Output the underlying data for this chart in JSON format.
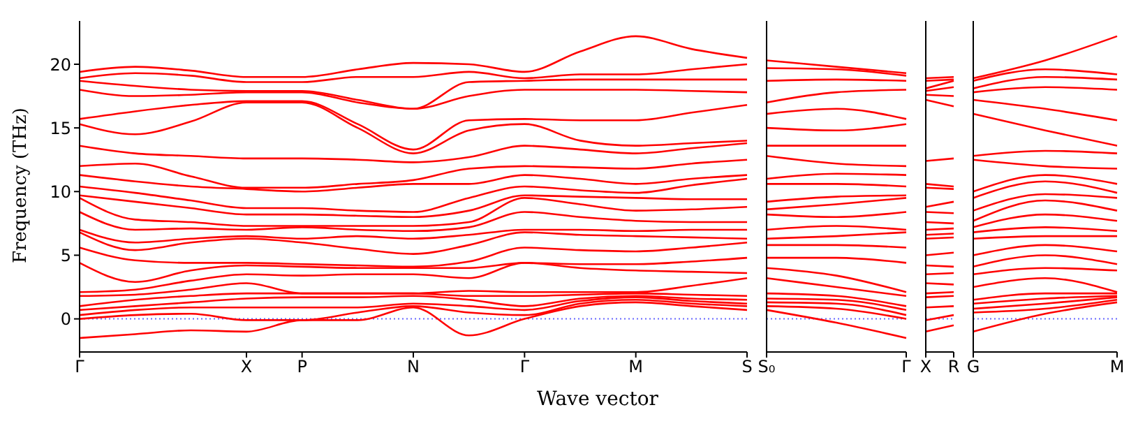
{
  "chart_data": [
    {
      "type": "line",
      "ylabel": "Frequency (THz)",
      "xlabel": "Wave vector",
      "marker": "none",
      "categories": [
        "Γ",
        null,
        null,
        "X",
        "P",
        null,
        "N",
        null,
        "Γ",
        null,
        "M",
        null,
        "S"
      ],
      "ylim": [
        -2.6,
        23.4
      ],
      "yticks": [
        0,
        5,
        10,
        15,
        20
      ],
      "ref_lines": [
        {
          "axis": "y",
          "value": 0,
          "color": "#6666ff",
          "line_style": "dotted"
        }
      ],
      "series": [
        {
          "color": "#ff0000",
          "values": [
            -1.5,
            -1.2,
            -0.9,
            -1.0,
            -0.1,
            -0.1,
            0.9,
            -1.3,
            0,
            1.0,
            1.3,
            1.0,
            0.7
          ]
        },
        {
          "color": "#ff0000",
          "values": [
            0,
            0.3,
            0.4,
            -0.1,
            -0.1,
            0.5,
            1.0,
            0.5,
            0.3,
            1.2,
            1.5,
            1.2,
            1.0
          ]
        },
        {
          "color": "#ff0000",
          "values": [
            0.3,
            0.7,
            0.9,
            0.9,
            0.9,
            0.9,
            1.2,
            1.0,
            0.7,
            1.4,
            1.7,
            1.4,
            1.2
          ]
        },
        {
          "color": "#ff0000",
          "values": [
            0.7,
            1.0,
            1.3,
            1.6,
            1.7,
            1.7,
            1.8,
            1.5,
            1.0,
            1.6,
            1.8,
            1.6,
            1.5
          ]
        },
        {
          "color": "#ff0000",
          "values": [
            1.0,
            1.5,
            1.8,
            2.0,
            2.0,
            2.0,
            2.0,
            1.8,
            1.8,
            1.9,
            2.0,
            1.9,
            1.8
          ]
        },
        {
          "color": "#ff0000",
          "values": [
            1.8,
            1.9,
            2.3,
            2.8,
            2.0,
            2.0,
            2.0,
            2.2,
            2.1,
            2.1,
            2.1,
            2.6,
            3.2
          ]
        },
        {
          "color": "#ff0000",
          "values": [
            2.1,
            2.3,
            3.0,
            3.5,
            3.4,
            3.5,
            3.5,
            3.2,
            4.4,
            4.0,
            3.8,
            3.7,
            3.6
          ]
        },
        {
          "color": "#ff0000",
          "values": [
            4.4,
            2.9,
            3.8,
            4.2,
            4.1,
            4.0,
            4.0,
            4.0,
            4.4,
            4.3,
            4.3,
            4.5,
            4.8
          ]
        },
        {
          "color": "#ff0000",
          "values": [
            5.6,
            4.6,
            4.4,
            4.4,
            4.3,
            4.2,
            4.1,
            4.5,
            5.6,
            5.4,
            5.3,
            5.6,
            6.0
          ]
        },
        {
          "color": "#ff0000",
          "values": [
            6.8,
            5.4,
            6.0,
            6.3,
            6.0,
            5.5,
            5.1,
            5.8,
            6.8,
            6.6,
            6.5,
            6.4,
            6.3
          ]
        },
        {
          "color": "#ff0000",
          "values": [
            7.0,
            6.0,
            6.3,
            6.5,
            6.3,
            6.5,
            6.3,
            6.6,
            7.0,
            7.0,
            6.9,
            7.0,
            7.0
          ]
        },
        {
          "color": "#ff0000",
          "values": [
            8.4,
            7.0,
            7.1,
            7.0,
            7.2,
            7.0,
            6.9,
            7.2,
            8.4,
            8.0,
            7.7,
            7.6,
            7.6
          ]
        },
        {
          "color": "#ff0000",
          "values": [
            9.5,
            7.8,
            7.6,
            7.3,
            7.3,
            7.3,
            7.3,
            7.6,
            9.5,
            9.0,
            8.5,
            8.6,
            8.8
          ]
        },
        {
          "color": "#ff0000",
          "values": [
            9.7,
            9.2,
            8.7,
            8.2,
            8.2,
            8.1,
            8.0,
            8.5,
            9.7,
            9.6,
            9.5,
            9.4,
            9.4
          ]
        },
        {
          "color": "#ff0000",
          "values": [
            10.4,
            9.9,
            9.3,
            8.7,
            8.7,
            8.5,
            8.4,
            9.5,
            10.4,
            10.1,
            9.9,
            10.5,
            11.0
          ]
        },
        {
          "color": "#ff0000",
          "values": [
            11.3,
            10.8,
            10.4,
            10.2,
            10.0,
            10.3,
            10.6,
            10.6,
            11.3,
            11.0,
            10.6,
            11.0,
            11.3
          ]
        },
        {
          "color": "#ff0000",
          "values": [
            12.0,
            12.2,
            11.2,
            10.3,
            10.3,
            10.6,
            10.9,
            11.8,
            12.0,
            11.9,
            11.8,
            12.2,
            12.5
          ]
        },
        {
          "color": "#ff0000",
          "values": [
            13.6,
            13.0,
            12.8,
            12.6,
            12.6,
            12.5,
            12.3,
            12.7,
            13.6,
            13.3,
            13.0,
            13.4,
            13.8
          ]
        },
        {
          "color": "#ff0000",
          "values": [
            15.3,
            14.5,
            15.5,
            17.0,
            17.0,
            15.0,
            13.0,
            14.8,
            15.3,
            14.0,
            13.6,
            13.8,
            14.0
          ]
        },
        {
          "color": "#ff0000",
          "values": [
            15.7,
            16.3,
            16.8,
            17.1,
            17.1,
            15.3,
            13.3,
            15.6,
            15.7,
            15.6,
            15.6,
            16.2,
            16.8
          ]
        },
        {
          "color": "#ff0000",
          "values": [
            18.0,
            17.5,
            17.6,
            17.8,
            17.8,
            17.0,
            16.5,
            17.5,
            18.0,
            18.0,
            18.0,
            17.9,
            17.8
          ]
        },
        {
          "color": "#ff0000",
          "values": [
            18.7,
            18.3,
            18.0,
            17.9,
            17.9,
            17.2,
            16.5,
            18.6,
            18.7,
            18.8,
            18.8,
            18.8,
            18.8
          ]
        },
        {
          "color": "#ff0000",
          "values": [
            18.9,
            19.3,
            19.1,
            18.6,
            18.6,
            19.0,
            19.0,
            19.4,
            18.9,
            19.2,
            19.2,
            19.6,
            20.0
          ]
        },
        {
          "color": "#ff0000",
          "values": [
            19.4,
            19.8,
            19.5,
            19.0,
            19.0,
            19.6,
            20.1,
            20.0,
            19.4,
            21.0,
            22.2,
            21.2,
            20.5
          ]
        }
      ]
    },
    {
      "type": "line",
      "marker": "none",
      "tick_labels": "x",
      "categories": [
        "S₀",
        null,
        "Γ"
      ],
      "ylim": [
        -2.6,
        23.4
      ],
      "ref_lines": [
        {
          "axis": "y",
          "value": 0,
          "color": "#6666ff",
          "line_style": "dotted"
        }
      ],
      "series": [
        {
          "color": "#ff0000",
          "values": [
            0.7,
            -0.3,
            -1.5
          ]
        },
        {
          "color": "#ff0000",
          "values": [
            1.0,
            0.8,
            0
          ]
        },
        {
          "color": "#ff0000",
          "values": [
            1.3,
            1.2,
            0.3
          ]
        },
        {
          "color": "#ff0000",
          "values": [
            1.6,
            1.5,
            0.7
          ]
        },
        {
          "color": "#ff0000",
          "values": [
            2.0,
            1.8,
            1.0
          ]
        },
        {
          "color": "#ff0000",
          "values": [
            3.2,
            2.5,
            1.8
          ]
        },
        {
          "color": "#ff0000",
          "values": [
            4.0,
            3.4,
            2.1
          ]
        },
        {
          "color": "#ff0000",
          "values": [
            4.8,
            4.8,
            4.4
          ]
        },
        {
          "color": "#ff0000",
          "values": [
            5.8,
            5.8,
            5.6
          ]
        },
        {
          "color": "#ff0000",
          "values": [
            6.3,
            6.5,
            6.8
          ]
        },
        {
          "color": "#ff0000",
          "values": [
            7.0,
            7.3,
            7.0
          ]
        },
        {
          "color": "#ff0000",
          "values": [
            8.2,
            8.0,
            8.4
          ]
        },
        {
          "color": "#ff0000",
          "values": [
            8.6,
            9.0,
            9.5
          ]
        },
        {
          "color": "#ff0000",
          "values": [
            9.2,
            9.6,
            9.7
          ]
        },
        {
          "color": "#ff0000",
          "values": [
            10.6,
            10.6,
            10.4
          ]
        },
        {
          "color": "#ff0000",
          "values": [
            11.0,
            11.4,
            11.3
          ]
        },
        {
          "color": "#ff0000",
          "values": [
            12.8,
            12.2,
            12.0
          ]
        },
        {
          "color": "#ff0000",
          "values": [
            13.6,
            13.6,
            13.6
          ]
        },
        {
          "color": "#ff0000",
          "values": [
            15.0,
            14.8,
            15.3
          ]
        },
        {
          "color": "#ff0000",
          "values": [
            16.1,
            16.5,
            15.7
          ]
        },
        {
          "color": "#ff0000",
          "values": [
            17.0,
            17.8,
            18.0
          ]
        },
        {
          "color": "#ff0000",
          "values": [
            18.7,
            18.8,
            18.7
          ]
        },
        {
          "color": "#ff0000",
          "values": [
            19.7,
            19.6,
            19.1
          ]
        },
        {
          "color": "#ff0000",
          "values": [
            20.3,
            19.8,
            19.3
          ]
        }
      ]
    },
    {
      "type": "line",
      "marker": "none",
      "tick_labels": "x",
      "categories": [
        "X",
        "R"
      ],
      "ylim": [
        -2.6,
        23.4
      ],
      "ref_lines": [
        {
          "axis": "y",
          "value": 0,
          "color": "#6666ff",
          "line_style": "dotted"
        }
      ],
      "series": [
        {
          "color": "#ff0000",
          "values": [
            -1.0,
            -0.5
          ]
        },
        {
          "color": "#ff0000",
          "values": [
            -0.1,
            0.3
          ]
        },
        {
          "color": "#ff0000",
          "values": [
            0.9,
            1.0
          ]
        },
        {
          "color": "#ff0000",
          "values": [
            1.7,
            1.8
          ]
        },
        {
          "color": "#ff0000",
          "values": [
            2.0,
            2.1
          ]
        },
        {
          "color": "#ff0000",
          "values": [
            2.8,
            2.7
          ]
        },
        {
          "color": "#ff0000",
          "values": [
            3.5,
            3.6
          ]
        },
        {
          "color": "#ff0000",
          "values": [
            4.2,
            4.1
          ]
        },
        {
          "color": "#ff0000",
          "values": [
            5.0,
            5.2
          ]
        },
        {
          "color": "#ff0000",
          "values": [
            6.3,
            6.4
          ]
        },
        {
          "color": "#ff0000",
          "values": [
            6.6,
            6.7
          ]
        },
        {
          "color": "#ff0000",
          "values": [
            7.0,
            7.1
          ]
        },
        {
          "color": "#ff0000",
          "values": [
            7.6,
            7.5
          ]
        },
        {
          "color": "#ff0000",
          "values": [
            8.4,
            8.3
          ]
        },
        {
          "color": "#ff0000",
          "values": [
            8.8,
            9.2
          ]
        },
        {
          "color": "#ff0000",
          "values": [
            10.3,
            10.2
          ]
        },
        {
          "color": "#ff0000",
          "values": [
            10.6,
            10.4
          ]
        },
        {
          "color": "#ff0000",
          "values": [
            12.4,
            12.6
          ]
        },
        {
          "color": "#ff0000",
          "values": [
            17.2,
            16.7
          ]
        },
        {
          "color": "#ff0000",
          "values": [
            17.6,
            17.5
          ]
        },
        {
          "color": "#ff0000",
          "values": [
            17.9,
            18.2
          ]
        },
        {
          "color": "#ff0000",
          "values": [
            18.1,
            18.7
          ]
        },
        {
          "color": "#ff0000",
          "values": [
            18.7,
            18.8
          ]
        },
        {
          "color": "#ff0000",
          "values": [
            18.9,
            19.0
          ]
        }
      ]
    },
    {
      "type": "line",
      "marker": "none",
      "tick_labels": "x",
      "categories": [
        "G",
        null,
        "M"
      ],
      "ylim": [
        -2.6,
        23.4
      ],
      "ref_lines": [
        {
          "axis": "y",
          "value": 0,
          "color": "#6666ff",
          "line_style": "dotted"
        }
      ],
      "series": [
        {
          "color": "#ff0000",
          "values": [
            -1.0,
            0.4,
            1.3
          ]
        },
        {
          "color": "#ff0000",
          "values": [
            0.5,
            0.8,
            1.5
          ]
        },
        {
          "color": "#ff0000",
          "values": [
            0.8,
            1.2,
            1.7
          ]
        },
        {
          "color": "#ff0000",
          "values": [
            1.2,
            1.6,
            1.8
          ]
        },
        {
          "color": "#ff0000",
          "values": [
            1.5,
            2.0,
            2.0
          ]
        },
        {
          "color": "#ff0000",
          "values": [
            2.5,
            3.2,
            2.1
          ]
        },
        {
          "color": "#ff0000",
          "values": [
            3.5,
            4.0,
            3.8
          ]
        },
        {
          "color": "#ff0000",
          "values": [
            4.1,
            5.0,
            4.3
          ]
        },
        {
          "color": "#ff0000",
          "values": [
            5.0,
            5.8,
            5.3
          ]
        },
        {
          "color": "#ff0000",
          "values": [
            6.3,
            6.5,
            6.5
          ]
        },
        {
          "color": "#ff0000",
          "values": [
            6.8,
            7.2,
            6.9
          ]
        },
        {
          "color": "#ff0000",
          "values": [
            7.2,
            8.2,
            7.7
          ]
        },
        {
          "color": "#ff0000",
          "values": [
            7.7,
            9.3,
            8.5
          ]
        },
        {
          "color": "#ff0000",
          "values": [
            8.5,
            9.8,
            9.5
          ]
        },
        {
          "color": "#ff0000",
          "values": [
            9.5,
            10.8,
            9.9
          ]
        },
        {
          "color": "#ff0000",
          "values": [
            10.0,
            11.3,
            10.6
          ]
        },
        {
          "color": "#ff0000",
          "values": [
            12.5,
            12.0,
            11.8
          ]
        },
        {
          "color": "#ff0000",
          "values": [
            12.8,
            13.2,
            13.0
          ]
        },
        {
          "color": "#ff0000",
          "values": [
            16.1,
            14.8,
            13.6
          ]
        },
        {
          "color": "#ff0000",
          "values": [
            17.2,
            16.5,
            15.6
          ]
        },
        {
          "color": "#ff0000",
          "values": [
            17.8,
            18.2,
            18.0
          ]
        },
        {
          "color": "#ff0000",
          "values": [
            18.1,
            19.0,
            18.8
          ]
        },
        {
          "color": "#ff0000",
          "values": [
            18.7,
            19.6,
            19.2
          ]
        },
        {
          "color": "#ff0000",
          "values": [
            18.9,
            20.3,
            22.2
          ]
        }
      ]
    }
  ]
}
